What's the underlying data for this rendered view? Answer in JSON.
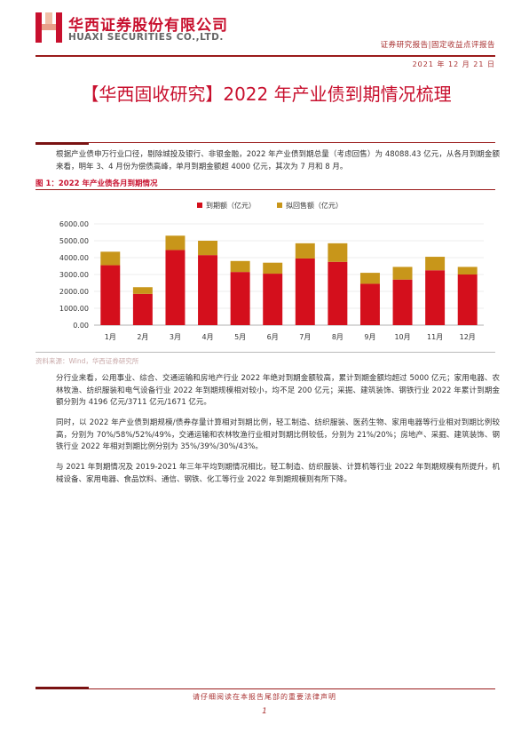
{
  "header": {
    "company_cn": "华西证券股份有限公司",
    "company_en": "HUAXI SECURITIES CO.,LTD.",
    "report_type": "证券研究报告|固定收益点评报告",
    "date": "2021 年 12 月 21 日"
  },
  "title": "【华西固收研究】2022 年产业债到期情况梳理",
  "paragraphs": {
    "p1": "根据产业债申万行业口径，剔除城投及银行、非银金融，2022 年产业债到期总量（考虑回售）为 48088.43 亿元，从各月到期金额来看，明年 3、4 月份为偿债高峰，单月到期金额超 4000 亿元，其次为 7 月和 8 月。",
    "p2": "分行业来看，公用事业、综合、交通运输和房地产行业 2022 年绝对到期金额较高，累计到期金额均超过 5000 亿元；家用电器、农林牧渔、纺织服装和电气设备行业 2022 年到期规模相对较小，均不足 200 亿元；采掘、建筑装饰、钢铁行业 2022 年累计到期金额分别为 4196 亿元/3711 亿元/1671 亿元。",
    "p3": "同时，以 2022 年产业债到期规模/债券存量计算相对到期比例，轻工制造、纺织服装、医药生物、家用电器等行业相对到期比例较高，分别为 70%/58%/52%/49%，交通运输和农林牧渔行业相对到期比例较低，分别为 21%/20%；房地产、采掘、建筑装饰、钢铁行业 2022 年相对到期比例分别为 35%/39%/30%/43%。",
    "p4": "与 2021 年到期情况及 2019-2021 年三年平均到期情况相比，轻工制造、纺织服装、计算机等行业 2022 年到期规模有所提升，机械设备、家用电器、食品饮料、通信、钢铁、化工等行业 2022 年到期规模则有所下降。"
  },
  "figure": {
    "caption": "图 1：2022 年产业债各月到期情况",
    "source": "资料来源：Wind，华西证券研究所"
  },
  "chart_data": {
    "type": "bar",
    "stacked": true,
    "categories": [
      "1月",
      "2月",
      "3月",
      "4月",
      "5月",
      "6月",
      "7月",
      "8月",
      "9月",
      "10月",
      "11月",
      "12月"
    ],
    "series": [
      {
        "name": "到期额（亿元）",
        "color": "#d40f1c",
        "values": [
          3550,
          1850,
          4450,
          4150,
          3150,
          3050,
          3950,
          3750,
          2450,
          2700,
          3250,
          3000
        ]
      },
      {
        "name": "拟回售额（亿元）",
        "color": "#c8961a",
        "values": [
          800,
          400,
          850,
          850,
          650,
          650,
          900,
          1100,
          650,
          750,
          800,
          450
        ]
      }
    ],
    "yticks": [
      "0.00",
      "1000.00",
      "2000.00",
      "3000.00",
      "4000.00",
      "5000.00",
      "6000.00"
    ],
    "ylim": [
      0,
      6000
    ],
    "grid": true,
    "legend": "top-right"
  },
  "footer": {
    "disclaimer": "请仔细阅读在本报告尾部的重要法律声明",
    "page": "1"
  }
}
